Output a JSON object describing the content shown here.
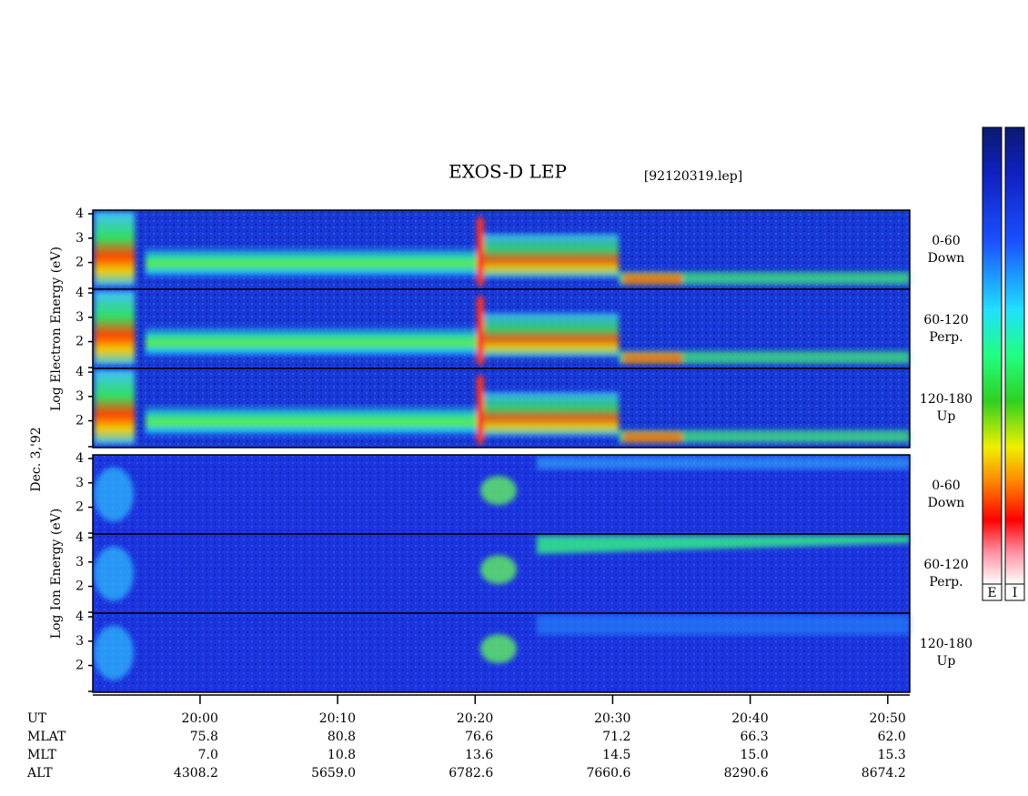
{
  "chart_data": {
    "type": "spectrogram",
    "title": "EXOS-D LEP",
    "subtitle": "[92120319.lep]",
    "date_label": "Dec. 3,'92",
    "xlim": [
      1192.2,
      1251.6
    ],
    "xticks": [
      {
        "value": 1200,
        "label": "20:00"
      },
      {
        "value": 1210,
        "label": "20:10"
      },
      {
        "value": 1220,
        "label": "20:20"
      },
      {
        "value": 1230,
        "label": "20:30"
      },
      {
        "value": 1240,
        "label": "20:40"
      },
      {
        "value": 1250,
        "label": "20:50"
      }
    ],
    "ylim": [
      0.9,
      4.15
    ],
    "yticks": [
      2,
      3,
      4
    ],
    "groups": [
      {
        "name": "electron",
        "ylabel": "Log Electron Energy (eV)",
        "panels": [
          {
            "angle": "0-60",
            "direction": "Down"
          },
          {
            "angle": "60-120",
            "direction": "Perp."
          },
          {
            "angle": "120-180",
            "direction": "Up"
          }
        ]
      },
      {
        "name": "ion",
        "ylabel": "Log Ion Energy (eV)",
        "panels": [
          {
            "angle": "0-60",
            "direction": "Down"
          },
          {
            "angle": "60-120",
            "direction": "Perp."
          },
          {
            "angle": "120-180",
            "direction": "Up"
          }
        ]
      }
    ],
    "colorbars": [
      "E",
      "I"
    ],
    "ephemeris": {
      "time_label": "UT",
      "rows": [
        {
          "name": "MLAT",
          "values": [
            "75.8",
            "80.8",
            "76.6",
            "71.2",
            "66.3",
            "62.0"
          ]
        },
        {
          "name": "MLT",
          "values": [
            "7.0",
            "10.8",
            "13.6",
            "14.5",
            "15.0",
            "15.3"
          ]
        },
        {
          "name": "ALT",
          "values": [
            "4308.2",
            "5659.0",
            "6782.6",
            "7660.6",
            "8290.6",
            "8674.2"
          ]
        }
      ]
    }
  }
}
